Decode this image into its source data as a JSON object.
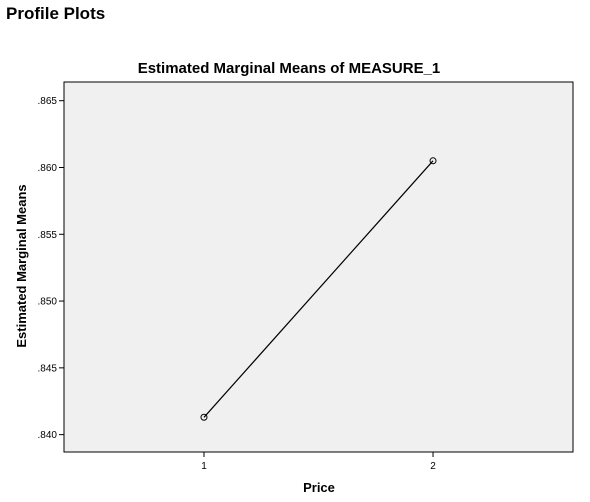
{
  "page": {
    "heading": "Profile Plots"
  },
  "chart_data": {
    "type": "line",
    "title": "Estimated Marginal Means of MEASURE_1",
    "xlabel": "Price",
    "ylabel": "Estimated Marginal Means",
    "categories": [
      "1",
      "2"
    ],
    "series": [
      {
        "values": [
          0.8413,
          0.8605
        ]
      }
    ],
    "yticks": [
      0.84,
      0.845,
      0.85,
      0.855,
      0.86,
      0.865
    ],
    "ytick_labels": [
      ".840",
      ".845",
      ".850",
      ".855",
      ".860",
      ".865"
    ],
    "ylim": [
      0.8387,
      0.8664
    ],
    "grid": false,
    "legend": "none",
    "colors": {
      "plot_background": "#f0f0f0",
      "line": "#000000",
      "marker": "#000000"
    }
  }
}
